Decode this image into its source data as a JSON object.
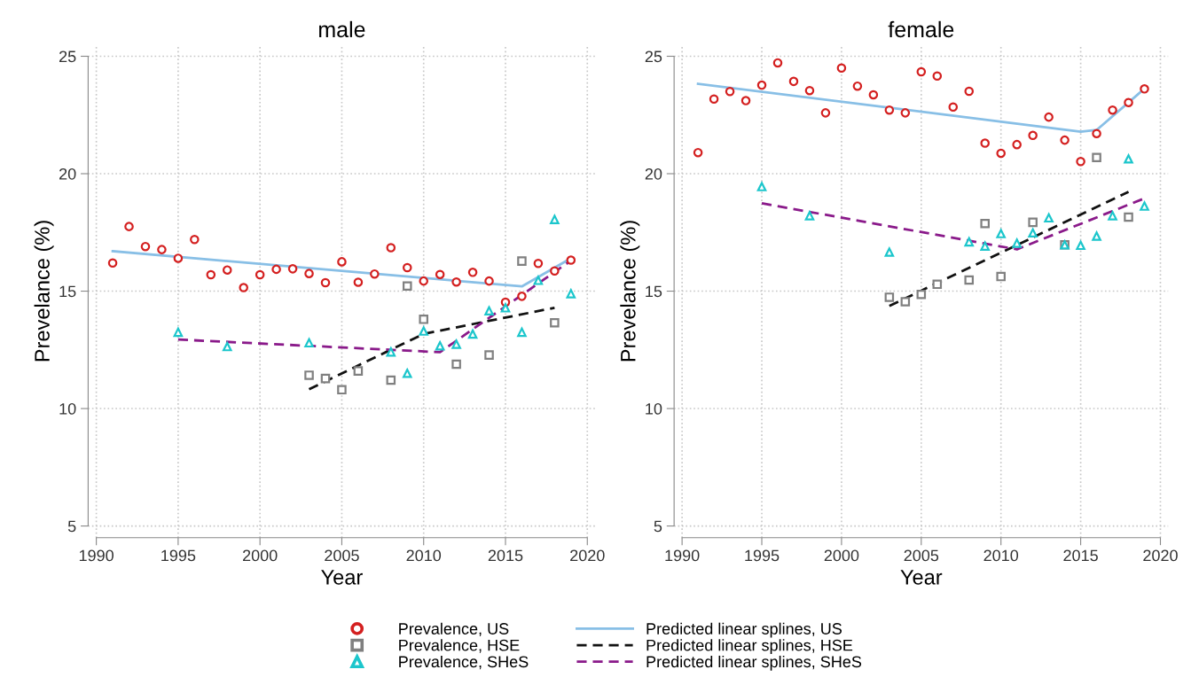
{
  "chart_data": [
    {
      "type": "scatter",
      "title": "male",
      "xlabel": "Year",
      "ylabel": "Prevelance (%)",
      "xlim": [
        1989.5,
        2020.5
      ],
      "ylim": [
        4.5,
        25.5
      ],
      "xticks": [
        1990,
        1995,
        2000,
        2005,
        2010,
        2015,
        2020
      ],
      "yticks": [
        5,
        10,
        15,
        20,
        25
      ],
      "grid": true,
      "legend": "bottom",
      "series": [
        {
          "name": "Prevalence, US",
          "marker": "circle",
          "color": "#d42020",
          "x": [
            1991,
            1992,
            1993,
            1994,
            1995,
            1996,
            1997,
            1998,
            1999,
            2000,
            2001,
            2002,
            2003,
            2004,
            2005,
            2006,
            2007,
            2008,
            2009,
            2010,
            2011,
            2012,
            2013,
            2014,
            2015,
            2016,
            2017,
            2018,
            2019
          ],
          "values": [
            16.2,
            17.75,
            16.9,
            16.77,
            16.4,
            17.2,
            15.7,
            15.9,
            15.15,
            15.7,
            15.93,
            15.95,
            15.75,
            15.36,
            16.25,
            15.38,
            15.73,
            16.85,
            16.0,
            15.43,
            15.71,
            15.39,
            15.8,
            15.43,
            14.53,
            14.78,
            16.18,
            15.86,
            16.32
          ]
        },
        {
          "name": "Prevalence, HSE",
          "marker": "square",
          "color": "#808080",
          "x": [
            2003,
            2004,
            2005,
            2006,
            2008,
            2009,
            2010,
            2012,
            2014,
            2016,
            2018
          ],
          "values": [
            11.42,
            11.28,
            10.8,
            11.6,
            11.21,
            15.22,
            13.8,
            11.89,
            12.28,
            16.28,
            13.65
          ]
        },
        {
          "name": "Prevalence, SHeS",
          "marker": "triangle",
          "color": "#1cc6cc",
          "x": [
            1995,
            1998,
            2003,
            2008,
            2009,
            2010,
            2011,
            2012,
            2013,
            2014,
            2015,
            2016,
            2017,
            2018,
            2019
          ],
          "values": [
            13.25,
            12.64,
            12.8,
            12.41,
            11.5,
            13.3,
            12.67,
            12.74,
            13.17,
            14.16,
            14.29,
            13.25,
            15.46,
            18.05,
            14.89
          ]
        },
        {
          "name": "Predicted linear splines, US",
          "type": "line",
          "line_style": "solid",
          "color": "#88bfe6",
          "x": [
            1991,
            2016,
            2019
          ],
          "values": [
            16.7,
            15.2,
            16.4
          ]
        },
        {
          "name": "Predicted linear splines, HSE",
          "type": "line",
          "line_style": "dashed",
          "color": "#111111",
          "x": [
            2003,
            2010,
            2018
          ],
          "values": [
            10.82,
            13.18,
            14.29
          ]
        },
        {
          "name": "Predicted linear splines, SHeS",
          "type": "line",
          "line_style": "dashed",
          "color": "#8a1a8a",
          "x": [
            1995,
            2011,
            2019
          ],
          "values": [
            12.94,
            12.4,
            16.3
          ]
        }
      ]
    },
    {
      "type": "scatter",
      "title": "female",
      "xlabel": "Year",
      "ylabel": "Prevelance (%)",
      "xlim": [
        1989.5,
        2020.5
      ],
      "ylim": [
        4.5,
        25.5
      ],
      "xticks": [
        1990,
        1995,
        2000,
        2005,
        2010,
        2015,
        2020
      ],
      "yticks": [
        5,
        10,
        15,
        20,
        25
      ],
      "grid": true,
      "series": [
        {
          "marker": "circle",
          "color": "#d42020",
          "x": [
            1991,
            1992,
            1993,
            1994,
            1995,
            1996,
            1997,
            1998,
            1999,
            2000,
            2001,
            2002,
            2003,
            2004,
            2005,
            2006,
            2007,
            2008,
            2009,
            2010,
            2011,
            2012,
            2013,
            2014,
            2015,
            2016,
            2017,
            2018,
            2019
          ],
          "values": [
            20.9,
            23.18,
            23.5,
            23.11,
            23.77,
            24.72,
            23.93,
            23.54,
            22.59,
            24.5,
            23.73,
            23.36,
            22.71,
            22.59,
            24.34,
            24.16,
            22.84,
            23.51,
            21.3,
            20.87,
            21.24,
            21.63,
            22.41,
            21.43,
            20.52,
            21.71,
            22.71,
            23.03,
            23.61
          ]
        },
        {
          "marker": "square",
          "color": "#808080",
          "x": [
            2003,
            2004,
            2005,
            2006,
            2008,
            2009,
            2010,
            2012,
            2014,
            2016,
            2018
          ],
          "values": [
            14.74,
            14.55,
            14.86,
            15.29,
            15.47,
            17.88,
            15.62,
            17.93,
            16.97,
            20.69,
            18.15
          ]
        },
        {
          "marker": "triangle",
          "color": "#1cc6cc",
          "x": [
            1995,
            1998,
            2003,
            2008,
            2009,
            2010,
            2011,
            2012,
            2013,
            2014,
            2015,
            2016,
            2017,
            2018,
            2019
          ],
          "values": [
            19.45,
            18.21,
            16.66,
            17.1,
            16.92,
            17.45,
            17.04,
            17.48,
            18.12,
            16.97,
            16.95,
            17.34,
            18.21,
            20.63,
            18.62
          ]
        },
        {
          "type": "line",
          "line_style": "solid",
          "color": "#88bfe6",
          "x": [
            1991,
            2015,
            2016,
            2019
          ],
          "values": [
            23.83,
            21.79,
            21.86,
            23.62
          ]
        },
        {
          "type": "line",
          "line_style": "dashed",
          "color": "#111111",
          "x": [
            2003,
            2018
          ],
          "values": [
            14.37,
            19.23
          ]
        },
        {
          "type": "line",
          "line_style": "dashed",
          "color": "#8a1a8a",
          "x": [
            1995,
            2011,
            2019
          ],
          "values": [
            18.74,
            16.78,
            18.95
          ]
        }
      ]
    }
  ]
}
